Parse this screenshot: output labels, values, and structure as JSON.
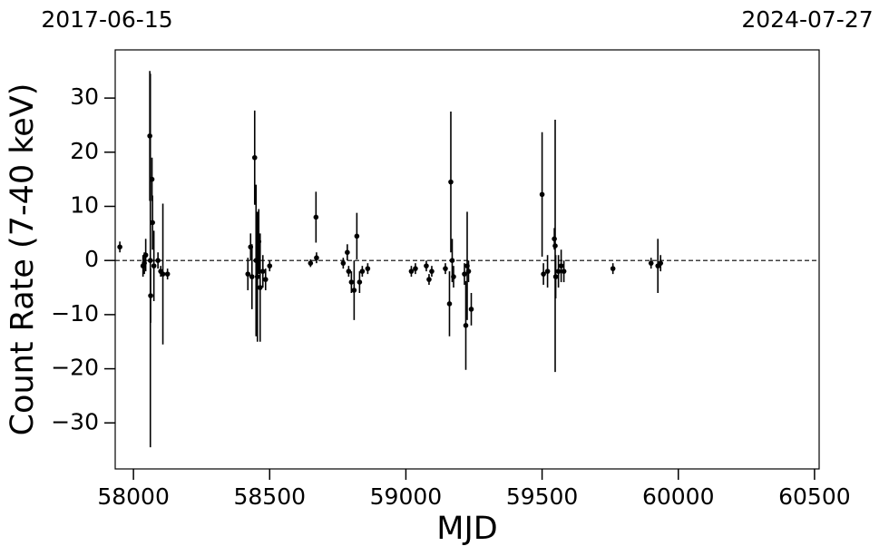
{
  "chart_data": {
    "type": "errorbar",
    "xlabel": "MJD",
    "ylabel": "Count Rate (7-40 keV)",
    "top_labels": [
      "2017-06-15",
      "2024-07-27"
    ],
    "xlim": [
      57933,
      60517
    ],
    "ylim": [
      -38.5,
      38.9
    ],
    "xticks": [
      58000,
      58500,
      59000,
      59500,
      60000,
      60500
    ],
    "yticks": [
      {
        "value": -30,
        "label": "−30"
      },
      {
        "value": -20,
        "label": "−20"
      },
      {
        "value": -10,
        "label": "−10"
      },
      0,
      10,
      20,
      30
    ],
    "hline": 0,
    "color": "#000000",
    "x": [
      57950,
      58035,
      58040,
      58045,
      58060,
      58062,
      58063,
      58068,
      58070,
      58075,
      58090,
      58100,
      58108,
      58125,
      58420,
      58430,
      58435,
      58445,
      58450,
      58455,
      58460,
      58465,
      58475,
      58485,
      58500,
      58650,
      58670,
      58672,
      58770,
      58785,
      58790,
      58800,
      58810,
      58820,
      58830,
      58840,
      58860,
      59020,
      59035,
      59075,
      59085,
      59095,
      59145,
      59160,
      59165,
      59170,
      59175,
      59215,
      59220,
      59225,
      59230,
      59240,
      59500,
      59505,
      59520,
      59545,
      59548,
      59550,
      59560,
      59570,
      59580,
      59760,
      59900,
      59925,
      59935
    ],
    "values": [
      2.5,
      -1,
      -0.5,
      1,
      23,
      0,
      -6.5,
      15,
      7,
      -1,
      0,
      -2,
      -2.5,
      -2.5,
      -2.5,
      2.5,
      -3,
      19,
      0,
      -3,
      3.5,
      -5,
      -2,
      -3.5,
      -1,
      -0.5,
      8,
      0.5,
      -0.5,
      1.5,
      -2,
      -4,
      -5.5,
      4.5,
      -4,
      -2,
      -1.5,
      -2,
      -1.5,
      -1,
      -3.5,
      -2,
      -1.5,
      -8,
      14.5,
      0,
      -3,
      -2.5,
      -12,
      -1,
      -2,
      -9,
      12.2,
      -2.5,
      -2,
      4,
      2.7,
      -3,
      -2,
      -1,
      -2,
      -1.5,
      -0.5,
      -1,
      -0.5
    ],
    "errors": [
      1,
      2,
      2,
      3,
      12,
      34.5,
      5,
      4,
      5,
      6.5,
      1.5,
      1,
      13,
      1,
      3,
      2.5,
      6,
      8.7,
      14,
      12,
      6,
      10,
      3,
      2,
      1,
      0.7,
      4.7,
      1,
      1,
      1.5,
      1,
      2,
      5.5,
      4.3,
      2,
      1,
      1,
      1,
      1,
      1,
      1,
      1,
      1,
      6,
      13,
      4,
      2,
      2,
      8.2,
      10,
      2,
      3,
      11.5,
      2,
      3,
      2,
      23.3,
      4,
      3,
      3,
      2,
      1,
      1,
      5,
      1.5
    ]
  }
}
